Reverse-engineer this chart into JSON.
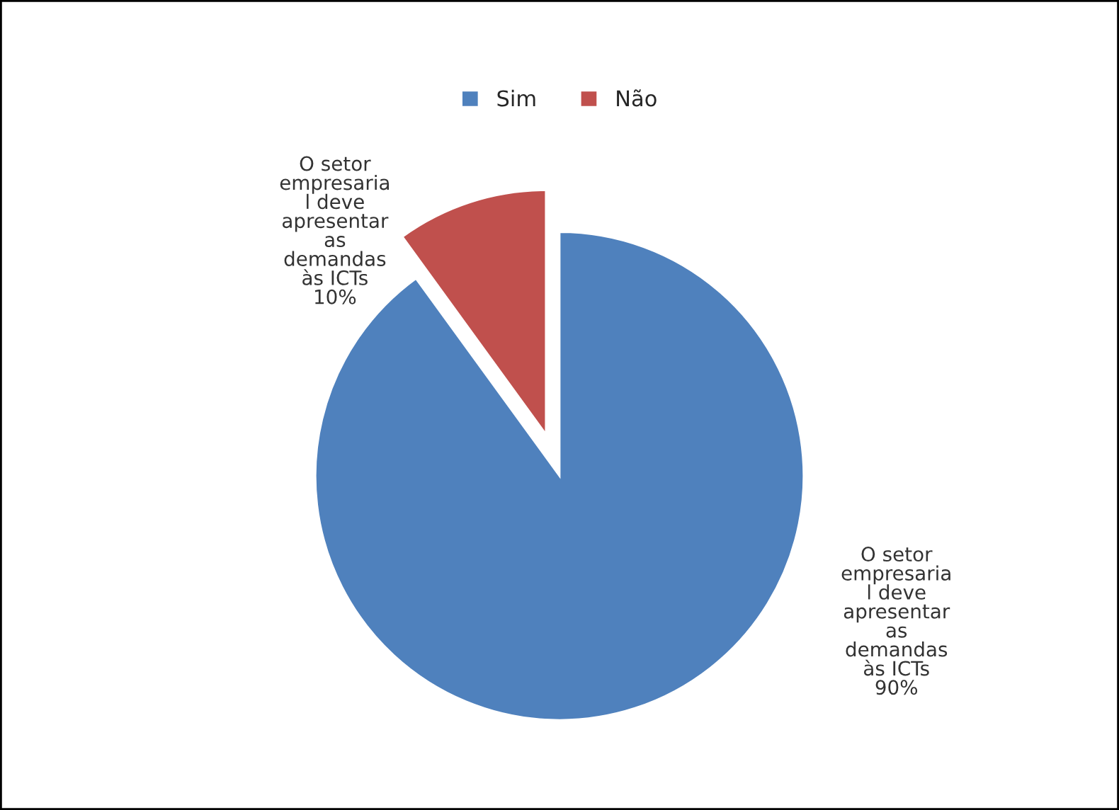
{
  "chart_data": {
    "type": "pie",
    "categories": [
      "Sim",
      "Não"
    ],
    "values": [
      90,
      10
    ],
    "colors": [
      "#4f81bd",
      "#c0504d"
    ],
    "value_labels": [
      "O setor\nempresaria\nl deve\napresentar\nas\ndemandas\nàs ICTs\n90%",
      "O setor\nempresaria\nl deve\napresentar\nas\ndemandas\nàs ICTs\n10%"
    ],
    "legend": "top"
  }
}
